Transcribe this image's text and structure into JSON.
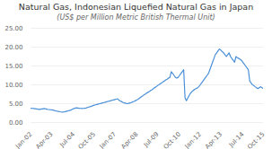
{
  "chart_data": {
    "type": "line",
    "title": "Natural Gas, Indonesian Liquefied Natural Gas in Japan",
    "subtitle": "(US$ per Million Metric British Thermal Unit)",
    "color": "#4a90d9",
    "grid": true,
    "ylim": [
      0,
      25
    ],
    "yticks": [
      {
        "value": 0,
        "label": "0.00"
      },
      {
        "value": 5,
        "label": "5.00"
      },
      {
        "value": 10,
        "label": "10.00"
      },
      {
        "value": 15,
        "label": "15.00"
      },
      {
        "value": 20,
        "label": "20.00"
      },
      {
        "value": 25,
        "label": "25.00"
      }
    ],
    "categories": [
      "Jan-02",
      null,
      null,
      null,
      null,
      null,
      null,
      null,
      null,
      null,
      null,
      null,
      null,
      null,
      null,
      "Apr-03",
      null,
      null,
      null,
      null,
      null,
      null,
      null,
      null,
      null,
      null,
      null,
      null,
      null,
      null,
      null,
      "Jul-04",
      null,
      null,
      null,
      null,
      null,
      null,
      null,
      null,
      null,
      null,
      null,
      null,
      null,
      null,
      "Oct-05",
      null,
      null,
      null,
      null,
      null,
      null,
      null,
      null,
      null,
      null,
      null,
      null,
      null,
      null,
      "Jan-07",
      null,
      null,
      null,
      null,
      null,
      null,
      null,
      null,
      null,
      null,
      null,
      null,
      null,
      null,
      null,
      "Apr-08",
      null,
      null,
      null,
      null,
      null,
      null,
      null,
      null,
      null,
      null,
      null,
      null,
      null,
      null,
      "Jul-09",
      null,
      null,
      null,
      null,
      null,
      null,
      null,
      null,
      null,
      null,
      null,
      null,
      null,
      null,
      null,
      "Oct-10",
      null,
      null,
      null,
      null,
      null,
      null,
      null,
      null,
      null,
      null,
      null,
      null,
      null,
      null,
      "Jan-12",
      null,
      null,
      null,
      null,
      null,
      null,
      null,
      null,
      null,
      null,
      null,
      null,
      null,
      null,
      "Apr-13",
      null,
      null,
      null,
      null,
      null,
      null,
      null,
      null,
      null,
      null,
      null,
      null,
      null,
      null,
      null,
      "Jul-14",
      null,
      null,
      null,
      null,
      null,
      null,
      null,
      null,
      null,
      null,
      null,
      null,
      null,
      null,
      "Oct-15"
    ],
    "values": [
      3.8,
      3.75,
      3.7,
      3.65,
      3.6,
      3.55,
      3.5,
      3.55,
      3.6,
      3.65,
      3.7,
      3.6,
      3.5,
      3.45,
      3.4,
      3.35,
      3.3,
      3.2,
      3.1,
      3.0,
      2.95,
      2.85,
      2.8,
      2.75,
      2.8,
      2.9,
      3.0,
      3.1,
      3.2,
      3.3,
      3.5,
      3.65,
      3.8,
      3.9,
      3.85,
      3.8,
      3.75,
      3.7,
      3.75,
      3.8,
      3.85,
      4.0,
      4.1,
      4.2,
      4.3,
      4.5,
      4.6,
      4.7,
      4.8,
      4.9,
      5.0,
      5.1,
      5.2,
      5.3,
      5.4,
      5.5,
      5.6,
      5.7,
      5.8,
      5.9,
      6.0,
      6.1,
      6.2,
      6.3,
      5.9,
      5.7,
      5.5,
      5.3,
      5.2,
      5.1,
      5.0,
      5.1,
      5.2,
      5.3,
      5.5,
      5.6,
      5.8,
      6.0,
      6.2,
      6.5,
      6.8,
      7.0,
      7.3,
      7.5,
      7.8,
      8.0,
      8.2,
      8.5,
      8.7,
      9.0,
      9.3,
      9.5,
      9.8,
      10.0,
      10.3,
      10.5,
      10.8,
      11.0,
      11.3,
      11.5,
      11.8,
      12.0,
      13.5,
      13.0,
      12.5,
      12.0,
      11.8,
      12.0,
      12.5,
      13.0,
      13.5,
      14.0,
      6.5,
      5.8,
      6.5,
      7.2,
      7.8,
      8.2,
      8.5,
      8.8,
      9.0,
      9.2,
      9.5,
      10.0,
      10.5,
      11.0,
      11.5,
      12.0,
      12.5,
      13.0,
      14.0,
      15.0,
      16.0,
      17.0,
      18.0,
      18.5,
      19.0,
      19.5,
      19.2,
      18.8,
      18.5,
      18.0,
      17.5,
      18.0,
      18.5,
      17.5,
      17.0,
      16.5,
      16.0,
      17.5,
      17.2,
      17.0,
      16.8,
      16.5,
      16.0,
      15.5,
      15.0,
      14.5,
      14.0,
      11.0,
      10.5,
      10.0,
      9.8,
      9.5,
      9.2,
      9.0,
      9.3,
      9.5,
      9.2,
      9.0
    ]
  }
}
